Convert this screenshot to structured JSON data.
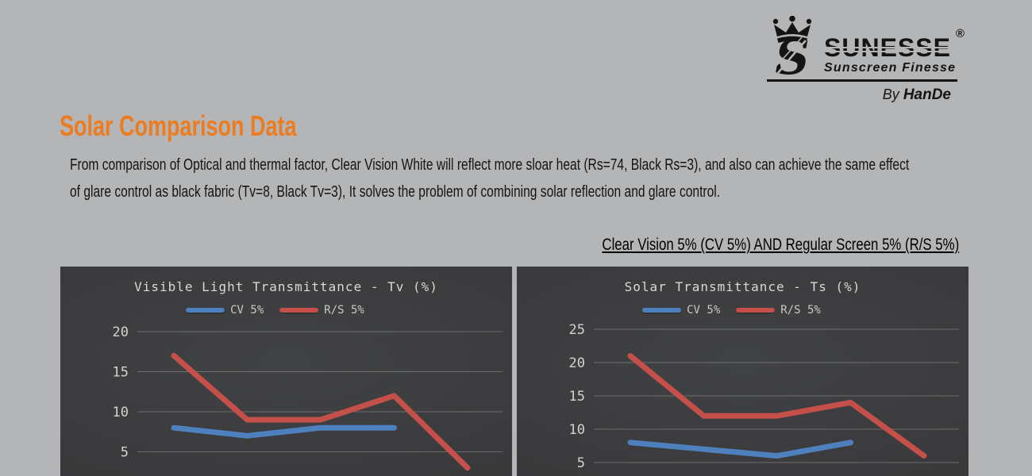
{
  "logo": {
    "brand": "SUNESSE",
    "registered": "®",
    "tagline": "Sunscreen Finesse",
    "byline_prefix": "By",
    "byline_name": "HanDe",
    "emblem": "crown-lion-s-emblem",
    "color": "#141414"
  },
  "header": {
    "title": "Solar Comparison Data",
    "title_color": "#EC7C1F"
  },
  "paragraph": {
    "line1": "From comparison of Optical and thermal factor, Clear Vision White will reflect more sloar heat (Rs=74, Black Rs=3), and also can achieve the same effect",
    "line2": "of glare control as black fabric (Tv=8, Black Tv=3), It solves the problem of combining solar reflection and glare control."
  },
  "subtitle": "Clear Vision 5% (CV 5%) AND Regular Screen 5% (R/S 5%)",
  "chart_data": [
    {
      "type": "line",
      "title": "Visible Light Transmittance - Tv (%)",
      "y_ticks": [
        20,
        15,
        10,
        5
      ],
      "grid": true,
      "legend_position": "top",
      "x_axis_labels_visible": false,
      "background": "dark",
      "series": [
        {
          "name": "CV 5%",
          "color": "#4E80BD",
          "values": [
            8,
            7,
            8,
            8
          ]
        },
        {
          "name": "R/S 5%",
          "color": "#C5504A",
          "values": [
            17,
            9,
            9,
            12,
            3
          ]
        }
      ]
    },
    {
      "type": "line",
      "title": "Solar Transmittance - Ts (%)",
      "y_ticks": [
        25,
        20,
        15,
        10,
        5
      ],
      "grid": true,
      "legend_position": "top",
      "x_axis_labels_visible": false,
      "background": "dark",
      "series": [
        {
          "name": "CV 5%",
          "color": "#4E80BD",
          "values": [
            8,
            7,
            6,
            8
          ]
        },
        {
          "name": "R/S 5%",
          "color": "#C5504A",
          "values": [
            21,
            12,
            12,
            14,
            6
          ]
        }
      ]
    }
  ]
}
